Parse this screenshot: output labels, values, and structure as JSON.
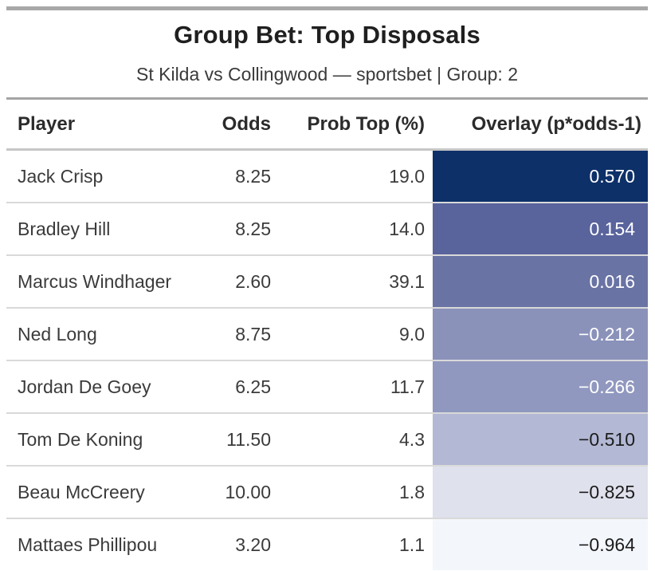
{
  "title": "Group Bet: Top Disposals",
  "subtitle": "St Kilda vs Collingwood — sportsbet | Group: 2",
  "table": {
    "columns": [
      "Player",
      "Odds",
      "Prob Top (%)",
      "Overlay (p*odds-1)"
    ],
    "rows": [
      {
        "player": "Jack Crisp",
        "odds": "8.25",
        "prob_top_pct": "19.0",
        "overlay": "0.570",
        "overlay_bg": "#0d3068",
        "overlay_text_color": "#ffffff"
      },
      {
        "player": "Bradley Hill",
        "odds": "8.25",
        "prob_top_pct": "14.0",
        "overlay": "0.154",
        "overlay_bg": "#59639c",
        "overlay_text_color": "#ffffff"
      },
      {
        "player": "Marcus Windhager",
        "odds": "2.60",
        "prob_top_pct": "39.1",
        "overlay": "0.016",
        "overlay_bg": "#6973a4",
        "overlay_text_color": "#ffffff"
      },
      {
        "player": "Ned Long",
        "odds": "8.75",
        "prob_top_pct": "9.0",
        "overlay": "−0.212",
        "overlay_bg": "#8a92ba",
        "overlay_text_color": "#ffffff"
      },
      {
        "player": "Jordan De Goey",
        "odds": "6.25",
        "prob_top_pct": "11.7",
        "overlay": "−0.266",
        "overlay_bg": "#9098bf",
        "overlay_text_color": "#ffffff"
      },
      {
        "player": "Tom De Koning",
        "odds": "11.50",
        "prob_top_pct": "4.3",
        "overlay": "−0.510",
        "overlay_bg": "#b3b8d4",
        "overlay_text_color": "#1c1c1c"
      },
      {
        "player": "Beau McCreery",
        "odds": "10.00",
        "prob_top_pct": "1.8",
        "overlay": "−0.825",
        "overlay_bg": "#dfe1ed",
        "overlay_text_color": "#1c1c1c"
      },
      {
        "player": "Mattaes Phillipou",
        "odds": "3.20",
        "prob_top_pct": "1.1",
        "overlay": "−0.964",
        "overlay_bg": "#f3f6fb",
        "overlay_text_color": "#1c1c1c"
      }
    ]
  },
  "chart_data": {
    "type": "table",
    "title": "Group Bet: Top Disposals",
    "subtitle": "St Kilda vs Collingwood — sportsbet | Group: 2",
    "columns": [
      "Player",
      "Odds",
      "Prob Top (%)",
      "Overlay (p*odds-1)"
    ],
    "rows": [
      [
        "Jack Crisp",
        8.25,
        19.0,
        0.57
      ],
      [
        "Bradley Hill",
        8.25,
        14.0,
        0.154
      ],
      [
        "Marcus Windhager",
        2.6,
        39.1,
        0.016
      ],
      [
        "Ned Long",
        8.75,
        9.0,
        -0.212
      ],
      [
        "Jordan De Goey",
        6.25,
        11.7,
        -0.266
      ],
      [
        "Tom De Koning",
        11.5,
        4.3,
        -0.51
      ],
      [
        "Beau McCreery",
        10.0,
        1.8,
        -0.825
      ],
      [
        "Mattaes Phillipou",
        3.2,
        1.1,
        -0.964
      ]
    ],
    "overlay_color_scale": {
      "high_value_color": "#0d3068",
      "low_value_color": "#f3f6fb",
      "note": "Overlay column cells shaded dark navy (highest overlay) to near-white (lowest overlay); text white on dark cells, black on light cells"
    }
  }
}
